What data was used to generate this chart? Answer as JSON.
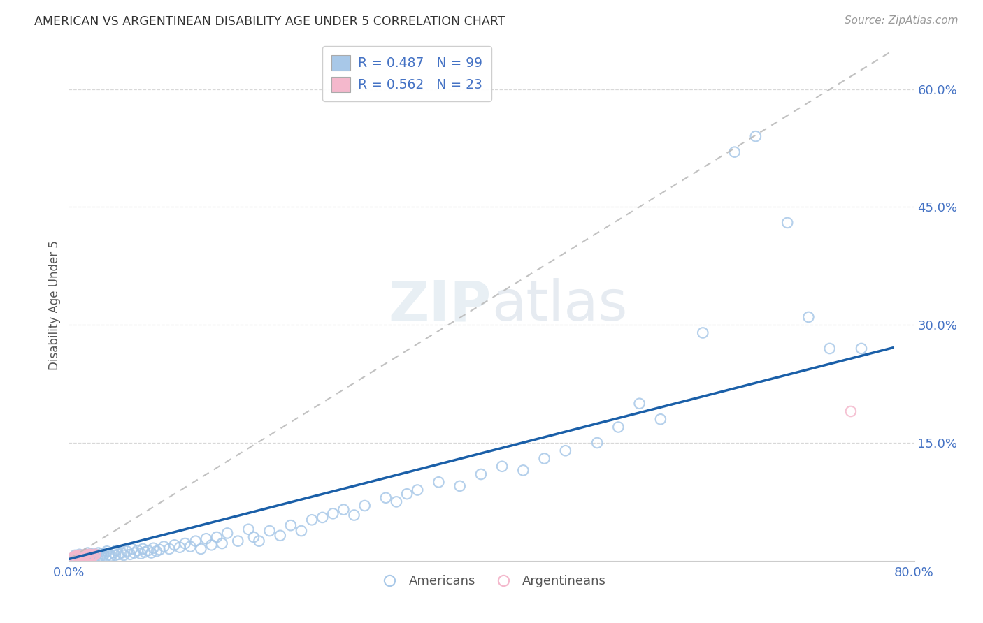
{
  "title": "AMERICAN VS ARGENTINEAN DISABILITY AGE UNDER 5 CORRELATION CHART",
  "source": "Source: ZipAtlas.com",
  "ylabel": "Disability Age Under 5",
  "xlim": [
    0.0,
    0.8
  ],
  "ylim": [
    0.0,
    0.65
  ],
  "ytick_positions": [
    0.15,
    0.3,
    0.45,
    0.6
  ],
  "ytick_labels": [
    "15.0%",
    "30.0%",
    "45.0%",
    "60.0%"
  ],
  "background_color": "#ffffff",
  "grid_color": "#d8d8d8",
  "watermark_text": "ZIPatlas",
  "legend_r1": "R = 0.487",
  "legend_n1": "N = 99",
  "legend_r2": "R = 0.562",
  "legend_n2": "N = 23",
  "blue_color": "#a8c8e8",
  "blue_edge_color": "#7aafd4",
  "pink_color": "#f4b8cc",
  "pink_edge_color": "#e890a8",
  "blue_line_color": "#1a5fa8",
  "pink_line_color": "#d4889a",
  "am_slope": 0.345,
  "am_intercept": 0.002,
  "ar_slope": 0.83,
  "ar_intercept": 0.002,
  "americans_x": [
    0.005,
    0.006,
    0.007,
    0.008,
    0.01,
    0.01,
    0.011,
    0.012,
    0.013,
    0.014,
    0.015,
    0.016,
    0.017,
    0.018,
    0.019,
    0.02,
    0.021,
    0.022,
    0.023,
    0.025,
    0.026,
    0.027,
    0.028,
    0.03,
    0.031,
    0.032,
    0.033,
    0.035,
    0.036,
    0.038,
    0.04,
    0.042,
    0.044,
    0.045,
    0.047,
    0.05,
    0.052,
    0.055,
    0.058,
    0.06,
    0.062,
    0.065,
    0.068,
    0.07,
    0.072,
    0.075,
    0.078,
    0.08,
    0.083,
    0.086,
    0.09,
    0.095,
    0.1,
    0.105,
    0.11,
    0.115,
    0.12,
    0.125,
    0.13,
    0.135,
    0.14,
    0.145,
    0.15,
    0.16,
    0.17,
    0.175,
    0.18,
    0.19,
    0.2,
    0.21,
    0.22,
    0.23,
    0.24,
    0.25,
    0.26,
    0.27,
    0.28,
    0.3,
    0.31,
    0.32,
    0.33,
    0.35,
    0.37,
    0.39,
    0.41,
    0.43,
    0.45,
    0.47,
    0.5,
    0.52,
    0.54,
    0.56,
    0.6,
    0.63,
    0.65,
    0.68,
    0.7,
    0.72,
    0.75
  ],
  "americans_y": [
    0.005,
    0.007,
    0.003,
    0.006,
    0.004,
    0.008,
    0.005,
    0.007,
    0.003,
    0.006,
    0.004,
    0.008,
    0.005,
    0.01,
    0.003,
    0.006,
    0.009,
    0.004,
    0.007,
    0.005,
    0.008,
    0.003,
    0.01,
    0.006,
    0.009,
    0.004,
    0.007,
    0.005,
    0.012,
    0.008,
    0.006,
    0.01,
    0.007,
    0.013,
    0.008,
    0.01,
    0.007,
    0.012,
    0.008,
    0.015,
    0.01,
    0.013,
    0.009,
    0.015,
    0.011,
    0.013,
    0.01,
    0.016,
    0.012,
    0.014,
    0.018,
    0.015,
    0.02,
    0.017,
    0.022,
    0.018,
    0.025,
    0.015,
    0.028,
    0.02,
    0.03,
    0.022,
    0.035,
    0.025,
    0.04,
    0.03,
    0.025,
    0.038,
    0.032,
    0.045,
    0.038,
    0.052,
    0.055,
    0.06,
    0.065,
    0.058,
    0.07,
    0.08,
    0.075,
    0.085,
    0.09,
    0.1,
    0.095,
    0.11,
    0.12,
    0.115,
    0.13,
    0.14,
    0.15,
    0.17,
    0.2,
    0.18,
    0.29,
    0.52,
    0.54,
    0.43,
    0.31,
    0.27,
    0.27
  ],
  "argentineans_x": [
    0.003,
    0.005,
    0.006,
    0.007,
    0.008,
    0.009,
    0.01,
    0.01,
    0.011,
    0.012,
    0.013,
    0.014,
    0.015,
    0.016,
    0.017,
    0.018,
    0.019,
    0.02,
    0.021,
    0.022,
    0.023,
    0.025,
    0.74
  ],
  "argentineans_y": [
    0.003,
    0.005,
    0.004,
    0.006,
    0.005,
    0.004,
    0.007,
    0.005,
    0.006,
    0.004,
    0.007,
    0.005,
    0.006,
    0.008,
    0.005,
    0.007,
    0.006,
    0.008,
    0.005,
    0.007,
    0.006,
    0.008,
    0.19
  ]
}
